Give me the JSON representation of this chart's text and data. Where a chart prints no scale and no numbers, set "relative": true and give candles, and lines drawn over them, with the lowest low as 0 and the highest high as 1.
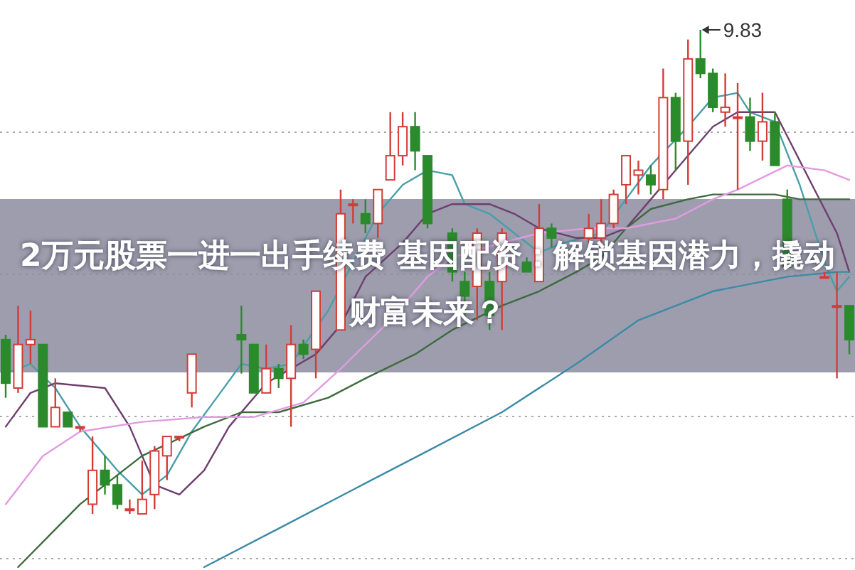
{
  "chart_data": {
    "type": "candlestick",
    "title": "2万元股票一进一出手续费 基因配资：解锁基因潜力，撬动财富未来？",
    "relative": true,
    "grid": true,
    "categories": [
      null,
      null,
      null,
      null,
      null,
      null,
      null,
      null,
      null,
      null,
      null,
      null,
      null,
      null,
      null,
      null,
      null,
      null,
      null,
      null,
      null,
      null,
      null,
      null,
      null,
      null,
      null,
      null,
      null,
      null,
      null,
      null,
      null,
      null,
      null,
      null,
      null,
      null,
      null,
      null,
      null,
      null,
      null,
      null,
      null,
      null,
      null,
      null,
      null,
      null,
      null,
      null,
      null,
      null,
      null,
      null,
      null,
      null,
      null,
      null,
      null,
      null,
      null,
      null,
      null,
      null,
      null,
      null,
      null
    ],
    "ohlc": [
      [
        0.36,
        0.37,
        0.24,
        0.27
      ],
      [
        0.26,
        0.43,
        0.25,
        0.35
      ],
      [
        0.35,
        0.42,
        0.31,
        0.36
      ],
      [
        0.35,
        0.35,
        0.18,
        0.18
      ],
      [
        0.18,
        0.28,
        0.18,
        0.22
      ],
      [
        0.21,
        0.21,
        0.18,
        0.18
      ],
      [
        0.18,
        0.18,
        0.17,
        0.18
      ],
      [
        0.02,
        0.16,
        0,
        0.09
      ],
      [
        0.09,
        0.12,
        0.04,
        0.06
      ],
      [
        0.06,
        0.08,
        0.01,
        0.02
      ],
      [
        0.01,
        0.03,
        0,
        0.01
      ],
      [
        0,
        0.11,
        0,
        0.03
      ],
      [
        0.04,
        0.14,
        0.01,
        0.13
      ],
      [
        0.12,
        0.16,
        0.07,
        0.16
      ],
      [
        0.16,
        0.16,
        0.15,
        0.16
      ],
      [
        0.25,
        0.33,
        0.22,
        0.33
      ],
      null,
      null,
      null,
      [
        0.37,
        0.43,
        0.29,
        0.36
      ],
      [
        0.35,
        0.35,
        0.25,
        0.25
      ],
      [
        0.25,
        0.35,
        0.25,
        0.3
      ],
      [
        0.3,
        0.31,
        0.26,
        0.28
      ],
      [
        0.28,
        0.39,
        0.18,
        0.35
      ],
      [
        0.35,
        0.36,
        0.32,
        0.33
      ],
      [
        0.34,
        0.46,
        0.28,
        0.46
      ],
      null,
      [
        0.38,
        0.67,
        0.38,
        0.62
      ],
      [
        0.64,
        0.65,
        0.6,
        0.64
      ],
      [
        0.62,
        0.65,
        0.58,
        0.6
      ],
      [
        0.6,
        0.67,
        0.57,
        0.67
      ],
      [
        0.69,
        0.83,
        0.69,
        0.74
      ],
      [
        0.74,
        0.83,
        0.72,
        0.8
      ],
      [
        0.8,
        0.83,
        0.71,
        0.75
      ],
      [
        0.74,
        0.74,
        0.59,
        0.6
      ],
      null,
      [
        0.58,
        0.59,
        0.48,
        0.5
      ],
      [
        0.48,
        0.5,
        0.4,
        0.45
      ],
      [
        0.47,
        0.59,
        0.4,
        0.58
      ],
      [
        0.48,
        0.5,
        0.38,
        0.41
      ],
      [
        0.48,
        0.59,
        0.38,
        0.58
      ],
      null,
      [
        0.52,
        0.53,
        0.5,
        0.5
      ],
      [
        0.48,
        0.64,
        0.48,
        0.59
      ],
      [
        0.59,
        0.6,
        0.55,
        0.57
      ],
      null,
      null,
      [
        0.57,
        0.62,
        0.56,
        0.59
      ],
      [
        0.57,
        0.65,
        0.56,
        0.6
      ],
      [
        0.6,
        0.67,
        0.59,
        0.66
      ],
      [
        0.68,
        0.74,
        0.64,
        0.74
      ],
      [
        0.7,
        0.73,
        0.66,
        0.71
      ],
      [
        0.7,
        0.72,
        0.66,
        0.68
      ],
      [
        0.67,
        0.92,
        0.65,
        0.86
      ],
      [
        0.86,
        0.87,
        0.71,
        0.77
      ],
      [
        0.77,
        0.98,
        0.68,
        0.94
      ],
      [
        0.94,
        1,
        0.9,
        0.91
      ],
      [
        0.91,
        0.92,
        0.83,
        0.84
      ],
      [
        0.83,
        0.91,
        0.8,
        0.84
      ],
      [
        0.82,
        0.89,
        0.67,
        0.82
      ],
      [
        0.82,
        0.86,
        0.75,
        0.77
      ],
      [
        0.77,
        0.87,
        0.73,
        0.81
      ],
      [
        0.81,
        0.83,
        0.72,
        0.72
      ],
      [
        0.65,
        0.67,
        0.51,
        0.51
      ],
      null,
      null,
      [
        0.49,
        0.5,
        0.49,
        0.49
      ],
      [
        0.43,
        0.5,
        0.28,
        0.43
      ],
      [
        0.43,
        0.43,
        0.33,
        0.36
      ]
    ],
    "series": [
      {
        "type": "line",
        "color": "#4a9ea8",
        "values": [
          0.29,
          null,
          0.31,
          null,
          0.26,
          null,
          0.18,
          null,
          null,
          0.09,
          null,
          0.04,
          null,
          0.08,
          null,
          0.17,
          null,
          0.24,
          null,
          0.31,
          null,
          0.3,
          null,
          0.31,
          null,
          null,
          0.42,
          null,
          0.52,
          null,
          0.62,
          null,
          0.68,
          null,
          0.71,
          null,
          0.7,
          0.64,
          null,
          0.62,
          null,
          0.58,
          null,
          0.54,
          null,
          0.56,
          null,
          null,
          0.58,
          null,
          0.65,
          null,
          0.72,
          null,
          null,
          0.8,
          null,
          0.86,
          null,
          0.87,
          0.83,
          null,
          0.81,
          null,
          0.68,
          null,
          0.52,
          0.46,
          0.49
        ]
      },
      {
        "type": "line",
        "color": "#6e3f6e",
        "values": [
          0.18,
          null,
          0.25,
          null,
          0.27,
          null,
          null,
          null,
          0.26,
          null,
          0.18,
          null,
          0.06,
          null,
          0.04,
          null,
          0.09,
          null,
          0.18,
          null,
          null,
          0.27,
          null,
          0.3,
          null,
          0.33,
          null,
          0.39,
          null,
          0.49,
          null,
          null,
          0.56,
          null,
          0.62,
          null,
          0.64,
          null,
          null,
          0.64,
          null,
          0.62,
          null,
          0.59,
          null,
          null,
          0.57,
          null,
          0.57,
          null,
          0.59,
          null,
          0.65,
          null,
          null,
          0.74,
          null,
          0.8,
          null,
          0.83,
          null,
          null,
          0.83,
          0.78,
          null,
          0.68,
          null,
          0.58,
          0.5
        ]
      },
      {
        "type": "line",
        "color": "#3d6b3d",
        "values": [
          null,
          -0.11,
          null,
          null,
          null,
          null,
          0.02,
          null,
          null,
          null,
          null,
          0.12,
          null,
          null,
          null,
          null,
          0.18,
          null,
          null,
          0.21,
          null,
          null,
          0.21,
          null,
          null,
          null,
          0.24,
          null,
          null,
          0.28,
          null,
          null,
          null,
          0.33,
          null,
          null,
          0.38,
          null,
          null,
          null,
          0.43,
          null,
          null,
          0.46,
          null,
          null,
          0.5,
          null,
          0.53,
          null,
          0.59,
          null,
          0.63,
          null,
          null,
          0.65,
          null,
          0.66,
          null,
          0.66,
          null,
          null,
          0.66,
          null,
          0.65,
          null,
          0.65,
          null,
          0.65
        ]
      },
      {
        "type": "line",
        "color": "#e29be2",
        "values": [
          0.02,
          null,
          null,
          0.12,
          null,
          null,
          0.17,
          null,
          null,
          null,
          null,
          0.19,
          null,
          null,
          null,
          null,
          0.2,
          null,
          null,
          null,
          0.2,
          null,
          null,
          null,
          0.23,
          null,
          null,
          0.3,
          null,
          null,
          null,
          0.4,
          null,
          null,
          0.49,
          null,
          0.53,
          null,
          null,
          null,
          0.56,
          null,
          null,
          0.58,
          null,
          null,
          null,
          0.59,
          null,
          null,
          0.59,
          null,
          null,
          null,
          0.61,
          null,
          null,
          0.65,
          null,
          0.67,
          null,
          null,
          null,
          0.72,
          null,
          null,
          0.71,
          null,
          0.69
        ]
      },
      {
        "type": "line",
        "color": "#3b8aa6",
        "values": [
          null,
          null,
          null,
          null,
          null,
          null,
          null,
          null,
          null,
          null,
          null,
          null,
          null,
          null,
          null,
          null,
          -0.11,
          null,
          null,
          null,
          null,
          null,
          -0.03,
          null,
          null,
          null,
          null,
          null,
          0.05,
          null,
          null,
          null,
          null,
          null,
          0.13,
          null,
          null,
          null,
          null,
          null,
          0.21,
          null,
          null,
          null,
          null,
          null,
          0.31,
          null,
          null,
          null,
          null,
          0.4,
          null,
          null,
          null,
          null,
          null,
          0.46,
          null,
          null,
          null,
          null,
          null,
          0.49,
          null,
          null,
          null,
          0.5,
          0.5
        ]
      }
    ],
    "annotations": [
      "9.83"
    ]
  }
}
